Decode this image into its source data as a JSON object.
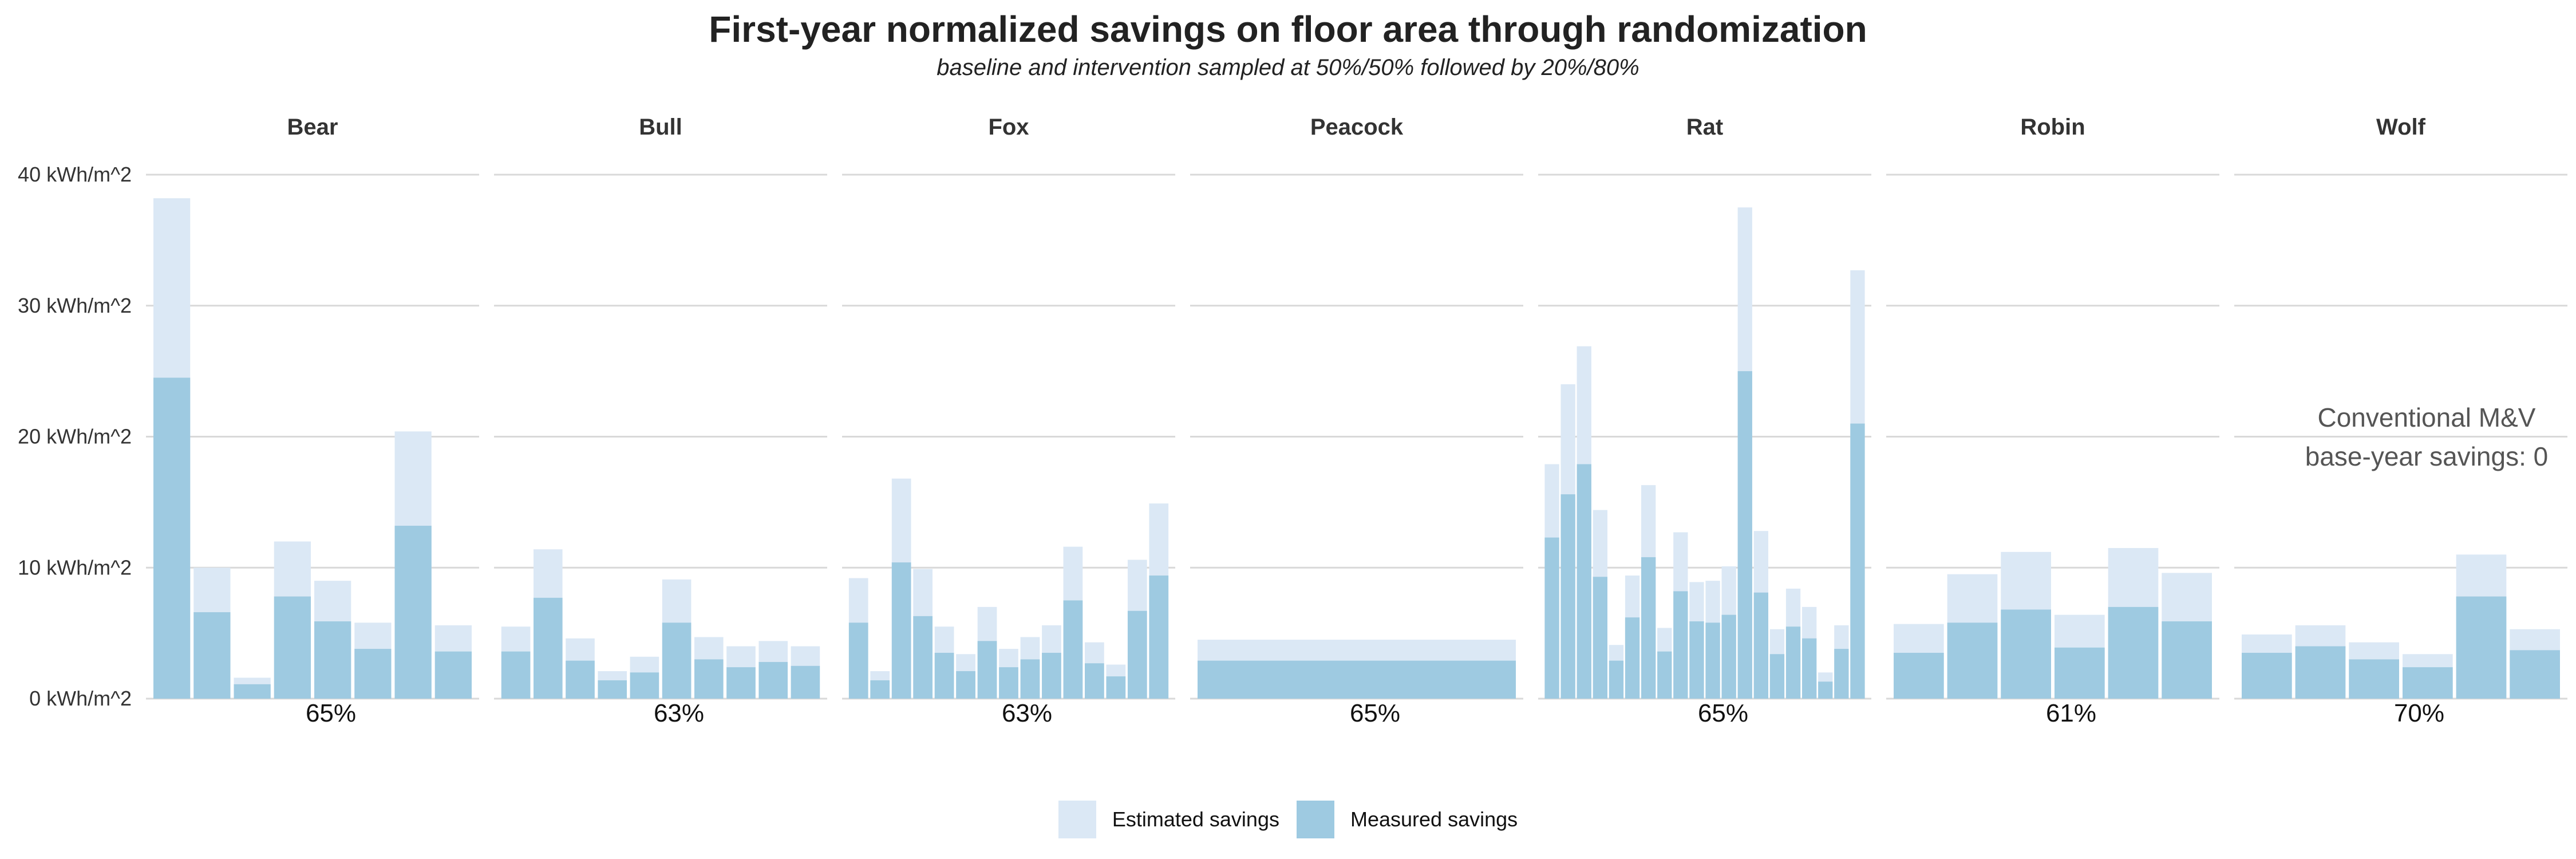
{
  "title": "First-year normalized savings on floor area through randomization",
  "subtitle": "baseline and intervention sampled at 50%/50% followed by 20%/80%",
  "colors": {
    "estimated": "#dbe8f5",
    "measured": "#9ecae1",
    "grid": "#d9d9d9",
    "text": "#333333"
  },
  "chart_data": {
    "type": "bar",
    "layout": "faceted, stacked-overlay bars (estimated behind measured)",
    "y_axis": {
      "unit": "kWh/m^2",
      "ylim": [
        0,
        40
      ],
      "ticks": [
        0,
        10,
        20,
        30,
        40
      ],
      "tick_labels": [
        "0 kWh/m^2",
        "10 kWh/m^2",
        "20 kWh/m^2",
        "30 kWh/m^2",
        "40 kWh/m^2"
      ]
    },
    "grid": true,
    "legend_position": "bottom",
    "legend": [
      "Estimated savings",
      "Measured savings"
    ],
    "annotation": {
      "panel": "Wolf",
      "lines": [
        "Conventional M&V",
        "base-year savings: 0"
      ]
    },
    "panels": [
      {
        "name": "Bear",
        "percent_label": "65%",
        "estimated": [
          38.2,
          10.0,
          1.6,
          12.0,
          9.0,
          5.8,
          20.4,
          5.6
        ],
        "measured": [
          24.5,
          6.6,
          1.1,
          7.8,
          5.9,
          3.8,
          13.2,
          3.6
        ]
      },
      {
        "name": "Bull",
        "percent_label": "63%",
        "estimated": [
          5.5,
          11.4,
          4.6,
          2.1,
          3.2,
          9.1,
          4.7,
          4.0,
          4.4,
          4.0
        ],
        "measured": [
          3.6,
          7.7,
          2.9,
          1.4,
          2.0,
          5.8,
          3.0,
          2.4,
          2.8,
          2.5
        ]
      },
      {
        "name": "Fox",
        "percent_label": "63%",
        "estimated": [
          9.2,
          2.1,
          16.8,
          9.9,
          5.5,
          3.4,
          7.0,
          3.8,
          4.7,
          5.6,
          11.6,
          4.3,
          2.6,
          10.6,
          14.9
        ],
        "measured": [
          5.8,
          1.4,
          10.4,
          6.3,
          3.5,
          2.1,
          4.4,
          2.4,
          3.0,
          3.5,
          7.5,
          2.7,
          1.7,
          6.7,
          9.4
        ]
      },
      {
        "name": "Peacock",
        "percent_label": "65%",
        "estimated": [
          4.5
        ],
        "measured": [
          2.9
        ]
      },
      {
        "name": "Rat",
        "percent_label": "65%",
        "estimated": [
          17.9,
          24.0,
          26.9,
          14.4,
          4.1,
          9.4,
          16.3,
          5.4,
          12.7,
          8.9,
          9.0,
          10.1,
          37.5,
          12.8,
          5.3,
          8.4,
          7.0,
          2.0,
          5.6,
          32.7
        ],
        "measured": [
          12.3,
          15.6,
          17.9,
          9.3,
          2.9,
          6.2,
          10.8,
          3.6,
          8.2,
          5.9,
          5.8,
          6.4,
          25.0,
          8.1,
          3.4,
          5.5,
          4.6,
          1.3,
          3.8,
          21.0
        ]
      },
      {
        "name": "Robin",
        "percent_label": "61%",
        "estimated": [
          5.7,
          9.5,
          11.2,
          6.4,
          11.5,
          9.6
        ],
        "measured": [
          3.5,
          5.8,
          6.8,
          3.9,
          7.0,
          5.9
        ]
      },
      {
        "name": "Wolf",
        "percent_label": "70%",
        "estimated": [
          4.9,
          5.6,
          4.3,
          3.4,
          11.0,
          5.3
        ],
        "measured": [
          3.5,
          4.0,
          3.0,
          2.4,
          7.8,
          3.7
        ]
      }
    ]
  }
}
